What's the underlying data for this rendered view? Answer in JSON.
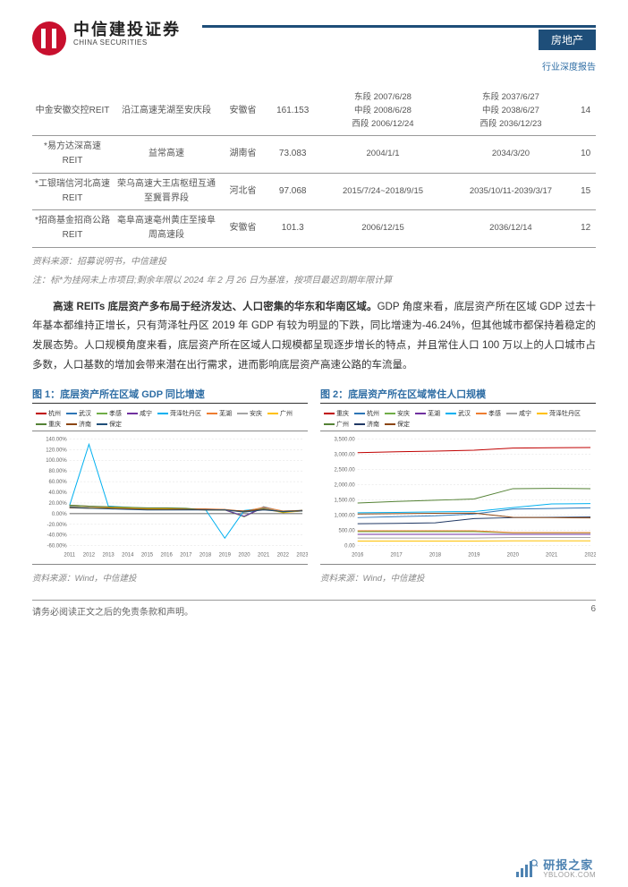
{
  "header": {
    "logo_cn": "中信建投证券",
    "logo_en": "CHINA SECURITIES",
    "sector": "房地产",
    "report_type": "行业深度报告"
  },
  "table": {
    "rows": [
      {
        "name": "中金安徽交控REIT",
        "project": "沿江高速芜湖至安庆段",
        "province": "安徽省",
        "value": "161.153",
        "start": "东段 2007/6/28\n中段 2008/6/28\n西段 2006/12/24",
        "end": "东段 2037/6/27\n中段 2038/6/27\n西段 2036/12/23",
        "years": "14"
      },
      {
        "name": "*易方达深高速REIT",
        "project": "益常高速",
        "province": "湖南省",
        "value": "73.083",
        "start": "2004/1/1",
        "end": "2034/3/20",
        "years": "10"
      },
      {
        "name": "*工银瑞信河北高速 REIT",
        "project": "荣乌高速大王店枢纽互通至冀晋界段",
        "province": "河北省",
        "value": "97.068",
        "start": "2015/7/24~2018/9/15",
        "end": "2035/10/11-2039/3/17",
        "years": "15"
      },
      {
        "name": "*招商基金招商公路 REIT",
        "project": "亳阜高速亳州黄庄至接阜周高速段",
        "province": "安徽省",
        "value": "101.3",
        "start": "2006/12/15",
        "end": "2036/12/14",
        "years": "12"
      }
    ],
    "source": "资料来源：招募说明书，中信建投",
    "note": "注：标*为挂网未上市项目;剩余年限以 2024 年 2 月 26 日为基准，按项目最迟到期年限计算"
  },
  "paragraph": {
    "lead_bold": "高速 REITs 底层资产多布局于经济发达、人口密集的华东和华南区域。",
    "rest": "GDP 角度来看，底层资产所在区域 GDP 过去十年基本都维持正增长，只有菏泽牡丹区 2019 年 GDP 有较为明显的下跌，同比增速为-46.24%，但其他城市都保持着稳定的发展态势。人口规模角度来看，底层资产所在区域人口规模都呈现逐步增长的特点，并且常住人口 100 万以上的人口城市占多数，人口基数的增加会带来潜在出行需求，进而影响底层资产高速公路的车流量。"
  },
  "chart1": {
    "title": "图 1：底层资产所在区域 GDP 同比增速",
    "type": "line",
    "x_labels": [
      "2011",
      "2012",
      "2013",
      "2014",
      "2015",
      "2016",
      "2017",
      "2018",
      "2019",
      "2020",
      "2021",
      "2022",
      "2023"
    ],
    "y_ticks": [
      "-60.00%",
      "-40.00%",
      "-20.00%",
      "0.00%",
      "20.00%",
      "40.00%",
      "60.00%",
      "80.00%",
      "100.00%",
      "120.00%",
      "140.00%"
    ],
    "ylim": [
      -60,
      140
    ],
    "legend": [
      {
        "label": "杭州",
        "color": "#c00000"
      },
      {
        "label": "武汉",
        "color": "#2e75b6"
      },
      {
        "label": "孝感",
        "color": "#70ad47"
      },
      {
        "label": "咸宁",
        "color": "#7030a0"
      },
      {
        "label": "菏泽牡丹区",
        "color": "#00b0f0"
      },
      {
        "label": "芜湖",
        "color": "#ed7d31"
      },
      {
        "label": "安庆",
        "color": "#a5a5a5"
      },
      {
        "label": "广州",
        "color": "#ffc000"
      },
      {
        "label": "重庆",
        "color": "#548235"
      },
      {
        "label": "济南",
        "color": "#8b4513"
      },
      {
        "label": "保定",
        "color": "#1f4e79"
      }
    ],
    "series": {
      "杭州": [
        12,
        11,
        10,
        9,
        10,
        10,
        9,
        8,
        7,
        4,
        9,
        3,
        5
      ],
      "武汉": [
        13,
        12,
        11,
        10,
        9,
        8,
        8,
        8,
        8,
        -5,
        13,
        4,
        6
      ],
      "孝感": [
        14,
        12,
        11,
        10,
        9,
        8,
        8,
        8,
        7,
        -6,
        12,
        4,
        5
      ],
      "咸宁": [
        13,
        12,
        11,
        10,
        9,
        8,
        8,
        7,
        7,
        -5,
        11,
        4,
        5
      ],
      "菏泽牡丹区": [
        15,
        130,
        14,
        12,
        10,
        9,
        8,
        8,
        -46,
        6,
        10,
        5,
        6
      ],
      "芜湖": [
        16,
        14,
        12,
        11,
        10,
        10,
        9,
        9,
        8,
        4,
        12,
        5,
        6
      ],
      "安庆": [
        13,
        12,
        11,
        10,
        9,
        8,
        8,
        8,
        7,
        3,
        10,
        4,
        5
      ],
      "广州": [
        12,
        11,
        11,
        10,
        9,
        9,
        8,
        7,
        7,
        3,
        9,
        2,
        5
      ],
      "重庆": [
        16,
        14,
        13,
        12,
        11,
        11,
        10,
        7,
        7,
        4,
        9,
        3,
        6
      ],
      "济南": [
        11,
        10,
        10,
        9,
        8,
        8,
        8,
        8,
        7,
        5,
        8,
        4,
        6
      ],
      "保定": [
        12,
        10,
        9,
        8,
        7,
        7,
        7,
        7,
        7,
        3,
        7,
        4,
        5
      ]
    },
    "source": "资料来源：Wind，中信建投",
    "bg": "#ffffff",
    "grid": "#dddddd",
    "axis_color": "#333333",
    "tick_fontsize": 6
  },
  "chart2": {
    "title": "图 2：底层资产所在区域常住人口规模",
    "type": "line",
    "x_labels": [
      "2016",
      "2017",
      "2018",
      "2019",
      "2020",
      "2021",
      "2022"
    ],
    "y_ticks": [
      "0.00",
      "500.00",
      "1,000.00",
      "1,500.00",
      "2,000.00",
      "2,500.00",
      "3,000.00",
      "3,500.00"
    ],
    "ylim": [
      0,
      3500
    ],
    "legend": [
      {
        "label": "重庆",
        "color": "#c00000"
      },
      {
        "label": "杭州",
        "color": "#2e75b6"
      },
      {
        "label": "安庆",
        "color": "#70ad47"
      },
      {
        "label": "芜湖",
        "color": "#7030a0"
      },
      {
        "label": "武汉",
        "color": "#00b0f0"
      },
      {
        "label": "孝感",
        "color": "#ed7d31"
      },
      {
        "label": "咸宁",
        "color": "#a5a5a5"
      },
      {
        "label": "菏泽牡丹区",
        "color": "#ffc000"
      },
      {
        "label": "广州",
        "color": "#548235"
      },
      {
        "label": "济南",
        "color": "#203864"
      },
      {
        "label": "保定",
        "color": "#8b4513"
      }
    ],
    "series": {
      "重庆": [
        3050,
        3080,
        3100,
        3130,
        3200,
        3210,
        3220
      ],
      "广州": [
        1400,
        1450,
        1490,
        1530,
        1870,
        1880,
        1870
      ],
      "杭州": [
        920,
        950,
        980,
        1040,
        1200,
        1220,
        1240
      ],
      "武汉": [
        1080,
        1090,
        1110,
        1120,
        1250,
        1370,
        1380
      ],
      "保定": [
        1040,
        1050,
        1060,
        1070,
        930,
        920,
        910
      ],
      "济南": [
        720,
        730,
        750,
        890,
        920,
        930,
        940
      ],
      "安庆": [
        460,
        460,
        460,
        460,
        420,
        420,
        420
      ],
      "孝感": [
        490,
        490,
        490,
        490,
        430,
        430,
        430
      ],
      "芜湖": [
        370,
        370,
        370,
        370,
        370,
        370,
        370
      ],
      "咸宁": [
        250,
        250,
        250,
        250,
        270,
        270,
        270
      ],
      "菏泽牡丹区": [
        150,
        150,
        150,
        150,
        160,
        160,
        160
      ]
    },
    "source": "资料来源：Wind，中信建投",
    "bg": "#ffffff",
    "grid": "#dddddd",
    "axis_color": "#333333",
    "tick_fontsize": 6
  },
  "footer": {
    "disclaimer": "请务必阅读正文之后的免责条款和声明。",
    "page_no": "6"
  },
  "watermark": {
    "cn": "研报之家",
    "en": "YBLOOK.COM"
  }
}
